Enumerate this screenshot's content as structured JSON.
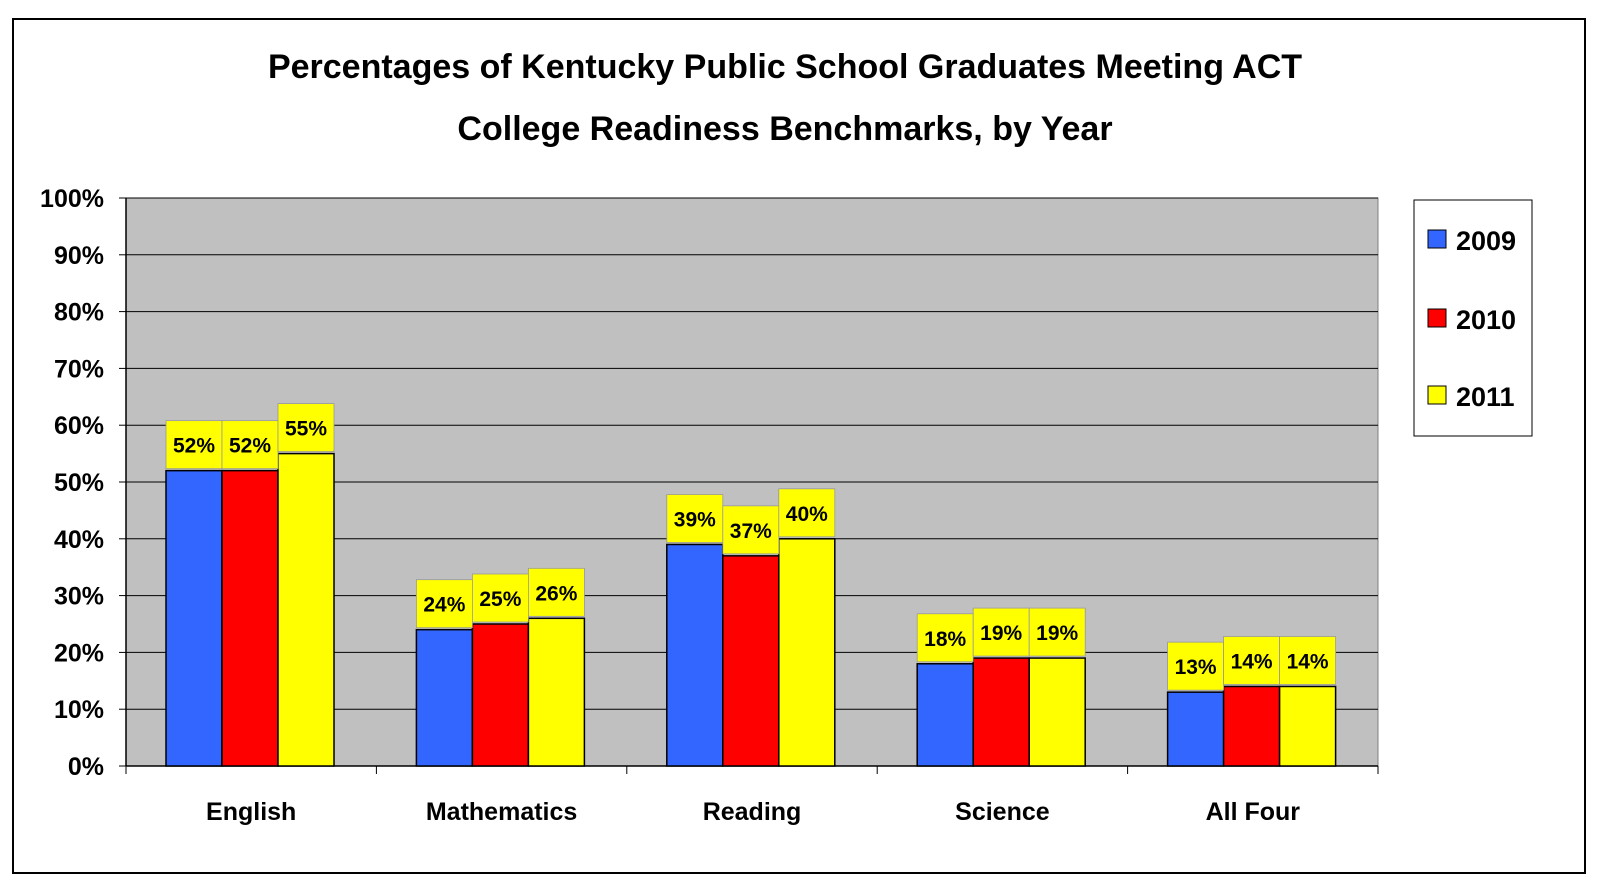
{
  "chart_data": {
    "type": "bar",
    "title": "Percentages of Kentucky Public School Graduates Meeting ACT College Readiness Benchmarks, by Year",
    "title_lines": [
      "Percentages of Kentucky Public School Graduates Meeting ACT",
      "College Readiness Benchmarks, by Year"
    ],
    "xlabel": "",
    "ylabel": "",
    "categories": [
      "English",
      "Mathematics",
      "Reading",
      "Science",
      "All Four"
    ],
    "series": [
      {
        "name": "2009",
        "color": "#3366ff",
        "values": [
          52,
          24,
          39,
          18,
          13
        ]
      },
      {
        "name": "2010",
        "color": "#ff0000",
        "values": [
          52,
          25,
          37,
          19,
          14
        ]
      },
      {
        "name": "2011",
        "color": "#ffff00",
        "values": [
          55,
          26,
          40,
          19,
          14
        ]
      }
    ],
    "ylim": [
      0,
      100
    ],
    "y_ticks": [
      0,
      10,
      20,
      30,
      40,
      50,
      60,
      70,
      80,
      90,
      100
    ],
    "y_tick_labels": [
      "0%",
      "10%",
      "20%",
      "30%",
      "40%",
      "50%",
      "60%",
      "70%",
      "80%",
      "90%",
      "100%"
    ],
    "data_label_suffix": "%",
    "grid": true,
    "plot_background": "#c0c0c0",
    "data_label_background": "#ffff00",
    "legend_position": "right"
  }
}
